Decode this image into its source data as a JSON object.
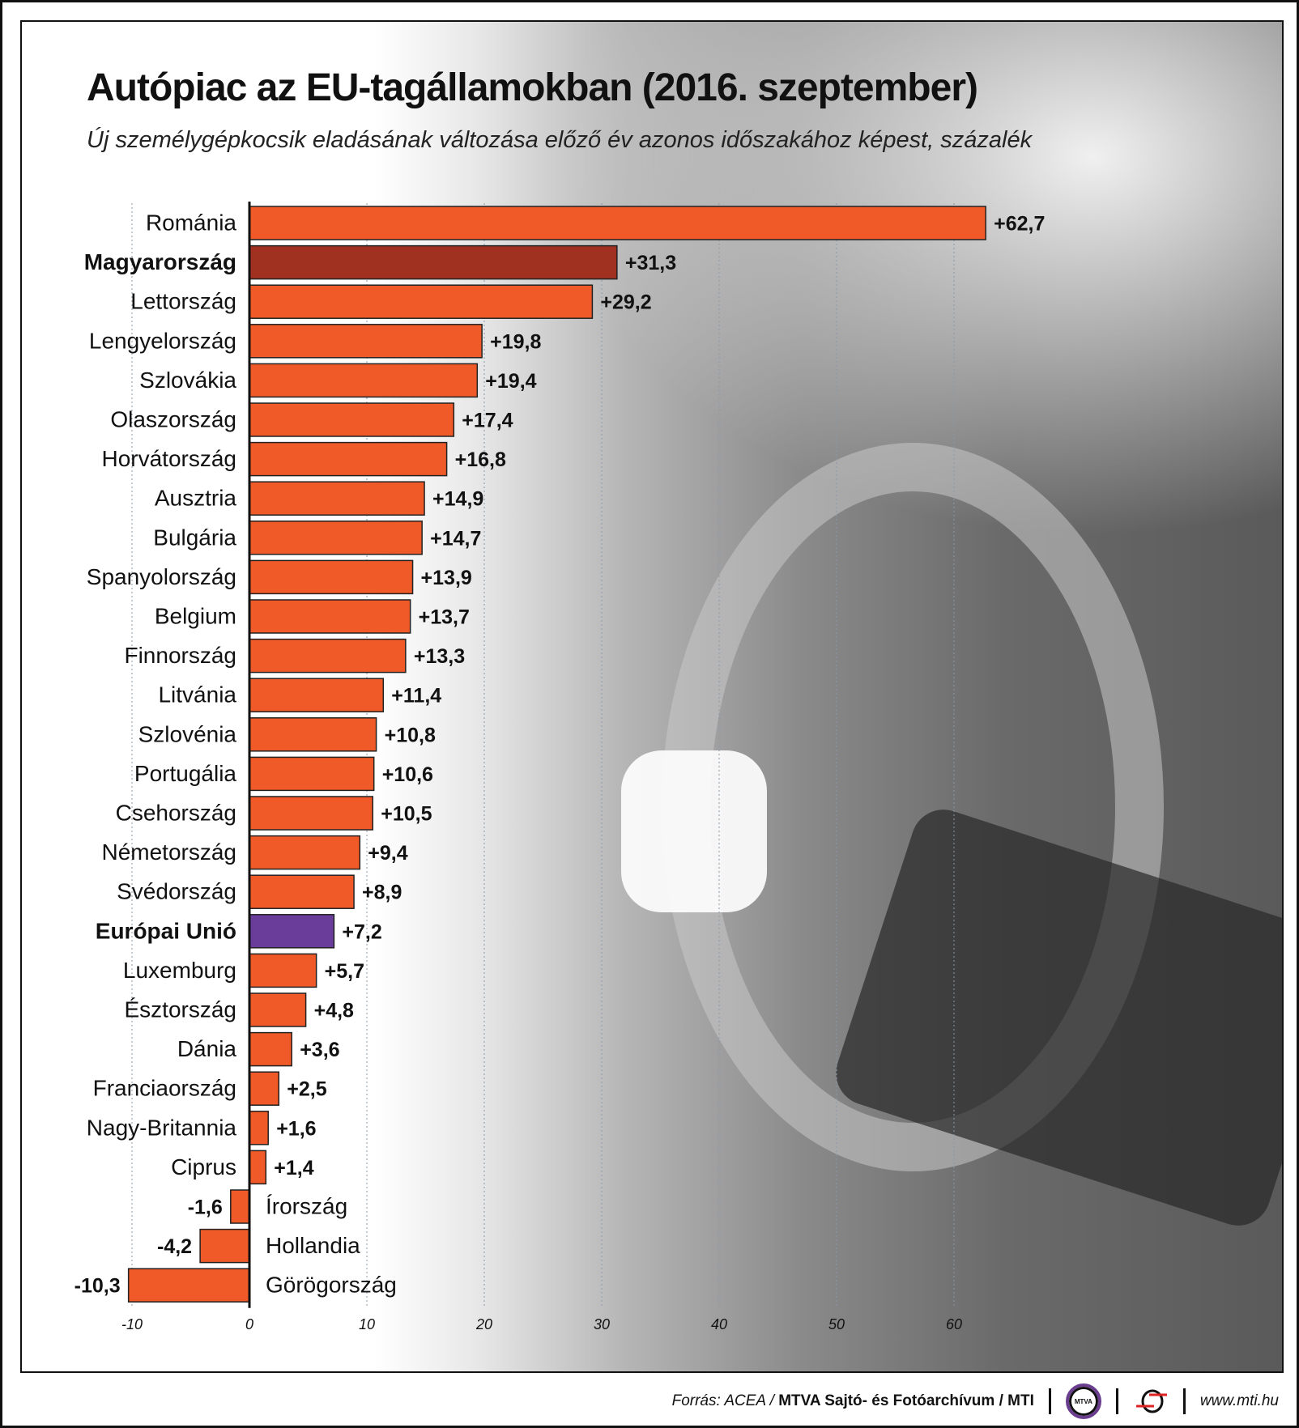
{
  "header": {
    "title": "Autópiac az EU-tagállamokban (2016. szeptember)",
    "subtitle": "Új személygépkocsik eladásának változása előző év azonos időszakához képest, százalék"
  },
  "footer": {
    "source_prefix": "Forrás: ACEA / ",
    "source_bold": "MTVA Sajtó- és Fotóarchívum / MTI",
    "mtva_logo": "MTVA",
    "url": "www.mti.hu"
  },
  "chart_data": {
    "type": "bar",
    "orientation": "horizontal",
    "categories": [
      "Románia",
      "Magyarország",
      "Lettország",
      "Lengyelország",
      "Szlovákia",
      "Olaszország",
      "Horvátország",
      "Ausztria",
      "Bulgária",
      "Spanyolország",
      "Belgium",
      "Finnország",
      "Litvánia",
      "Szlovénia",
      "Portugália",
      "Csehország",
      "Németország",
      "Svédország",
      "Európai Unió",
      "Luxemburg",
      "Észtország",
      "Dánia",
      "Franciaország",
      "Nagy-Britannia",
      "Ciprus",
      "Írország",
      "Hollandia",
      "Görögország"
    ],
    "values": [
      62.7,
      31.3,
      29.2,
      19.8,
      19.4,
      17.4,
      16.8,
      14.9,
      14.7,
      13.9,
      13.7,
      13.3,
      11.4,
      10.8,
      10.6,
      10.5,
      9.4,
      8.9,
      7.2,
      5.7,
      4.8,
      3.6,
      2.5,
      1.6,
      1.4,
      -1.6,
      -4.2,
      -10.3
    ],
    "data_labels": [
      "+62,7",
      "+31,3",
      "+29,2",
      "+19,8",
      "+19,4",
      "+17,4",
      "+16,8",
      "+14,9",
      "+14,7",
      "+13,9",
      "+13,7",
      "+13,3",
      "+11,4",
      "+10,8",
      "+10,6",
      "+10,5",
      "+9,4",
      "+8,9",
      "+7,2",
      "+5,7",
      "+4,8",
      "+3,6",
      "+2,5",
      "+1,6",
      "+1,4",
      "-1,6",
      "-4,2",
      "-10,3"
    ],
    "highlight": {
      "Magyarország": "#a0301f",
      "Európai Unió": "#6a3d9a"
    },
    "bold_categories": [
      "Magyarország",
      "Európai Unió"
    ],
    "bar_color": "#f05a28",
    "xlim": [
      -10,
      65
    ],
    "xticks": [
      "-10",
      "0",
      "10",
      "20",
      "30",
      "40",
      "50",
      "60"
    ],
    "xtick_values": [
      -10,
      0,
      10,
      20,
      30,
      40,
      50,
      60
    ],
    "grid": "vertical dotted"
  }
}
